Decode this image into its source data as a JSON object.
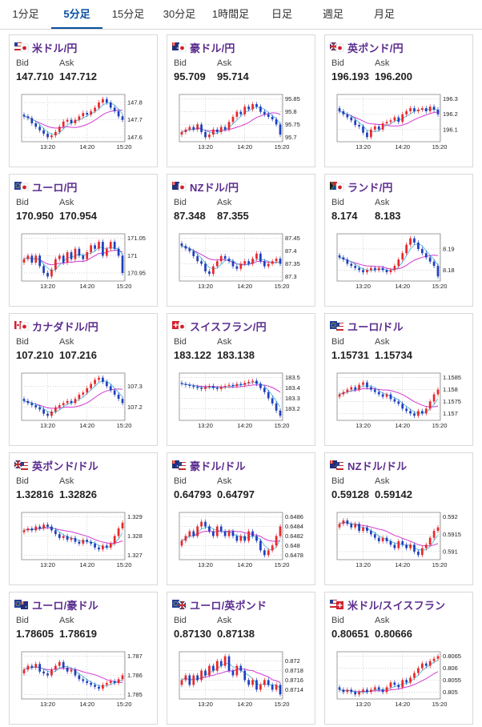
{
  "tabs": [
    "1分足",
    "5分足",
    "15分足",
    "30分足",
    "1時間足",
    "日足",
    "週足",
    "月足"
  ],
  "active_tab": 1,
  "colors": {
    "accent": "#0a50a0",
    "title": "#5b2d8e",
    "up": "#e8282b",
    "down": "#1f3fbd",
    "ma_pink": "#d33ad3",
    "ma_cyan": "#3cb4d8"
  },
  "labels": {
    "bid": "Bid",
    "ask": "Ask"
  },
  "pairs": [
    {
      "name": "米ドル/円",
      "flag": "us-jp-flag-icon",
      "bid": "147.710",
      "ask": "147.712",
      "y_ticks": [
        "147.8",
        "147.7",
        "147.6"
      ],
      "x_ticks": [
        "13:20",
        "14:20",
        "15:20"
      ],
      "closes": [
        147.72,
        147.71,
        147.68,
        147.66,
        147.64,
        147.62,
        147.6,
        147.61,
        147.63,
        147.66,
        147.69,
        147.7,
        147.68,
        147.7,
        147.72,
        147.74,
        147.73,
        147.75,
        147.77,
        147.8,
        147.82,
        147.8,
        147.77,
        147.75,
        147.72,
        147.7
      ]
    },
    {
      "name": "豪ドル/円",
      "flag": "au-jp-flag-icon",
      "bid": "95.709",
      "ask": "95.714",
      "y_ticks": [
        "95.85",
        "95.8",
        "95.75",
        "95.7"
      ],
      "x_ticks": [
        "13:20",
        "14:20",
        "15:20"
      ],
      "closes": [
        95.72,
        95.73,
        95.74,
        95.73,
        95.75,
        95.72,
        95.7,
        95.71,
        95.73,
        95.72,
        95.74,
        95.73,
        95.76,
        95.78,
        95.8,
        95.79,
        95.82,
        95.81,
        95.83,
        95.82,
        95.8,
        95.79,
        95.78,
        95.77,
        95.75,
        95.71
      ]
    },
    {
      "name": "英ポンド/円",
      "flag": "gb-jp-flag-icon",
      "bid": "196.193",
      "ask": "196.200",
      "y_ticks": [
        "196.3",
        "196.2",
        "196.1"
      ],
      "x_ticks": [
        "13:20",
        "14:20",
        "15:20"
      ],
      "closes": [
        196.22,
        196.2,
        196.18,
        196.16,
        196.13,
        196.12,
        196.08,
        196.05,
        196.1,
        196.12,
        196.1,
        196.14,
        196.15,
        196.16,
        196.18,
        196.15,
        196.2,
        196.22,
        196.24,
        196.22,
        196.23,
        196.24,
        196.22,
        196.25,
        196.23,
        196.2
      ]
    },
    {
      "name": "ユーロ/円",
      "flag": "eu-jp-flag-icon",
      "bid": "170.950",
      "ask": "170.954",
      "y_ticks": [
        "171.05",
        "171",
        "170.95"
      ],
      "x_ticks": [
        "13:20",
        "14:20",
        "15:20"
      ],
      "closes": [
        170.99,
        171.0,
        170.98,
        171.0,
        170.97,
        170.95,
        170.94,
        170.96,
        170.99,
        171.0,
        170.98,
        171.01,
        170.99,
        171.02,
        171.0,
        170.99,
        171.01,
        171.03,
        171.02,
        171.04,
        171.0,
        171.02,
        171.04,
        171.02,
        171.0,
        170.95
      ]
    },
    {
      "name": "NZドル/円",
      "flag": "nz-jp-flag-icon",
      "bid": "87.348",
      "ask": "87.355",
      "y_ticks": [
        "87.45",
        "87.4",
        "87.35",
        "87.3"
      ],
      "x_ticks": [
        "13:20",
        "14:20",
        "15:20"
      ],
      "closes": [
        87.42,
        87.41,
        87.4,
        87.38,
        87.36,
        87.35,
        87.32,
        87.31,
        87.34,
        87.36,
        87.38,
        87.37,
        87.36,
        87.34,
        87.33,
        87.35,
        87.36,
        87.35,
        87.37,
        87.39,
        87.36,
        87.34,
        87.35,
        87.36,
        87.37,
        87.35
      ]
    },
    {
      "name": "ランド/円",
      "flag": "za-jp-flag-icon",
      "bid": "8.174",
      "ask": "8.183",
      "y_ticks": [
        "8.19",
        "8.18"
      ],
      "x_ticks": [
        "13:20",
        "14:20",
        "15:20"
      ],
      "closes": [
        8.186,
        8.185,
        8.183,
        8.182,
        8.181,
        8.18,
        8.179,
        8.18,
        8.181,
        8.18,
        8.181,
        8.18,
        8.179,
        8.18,
        8.182,
        8.185,
        8.188,
        8.192,
        8.195,
        8.193,
        8.19,
        8.188,
        8.186,
        8.184,
        8.182,
        8.177
      ]
    },
    {
      "name": "カナダドル/円",
      "flag": "ca-jp-flag-icon",
      "bid": "107.210",
      "ask": "107.216",
      "y_ticks": [
        "107.3",
        "107.2"
      ],
      "x_ticks": [
        "13:20",
        "14:20",
        "15:20"
      ],
      "closes": [
        107.23,
        107.22,
        107.21,
        107.2,
        107.19,
        107.17,
        107.16,
        107.18,
        107.2,
        107.21,
        107.22,
        107.23,
        107.22,
        107.24,
        107.26,
        107.27,
        107.29,
        107.31,
        107.33,
        107.34,
        107.32,
        107.3,
        107.28,
        107.26,
        107.24,
        107.22
      ]
    },
    {
      "name": "スイスフラン/円",
      "flag": "ch-jp-flag-icon",
      "bid": "183.122",
      "ask": "183.138",
      "y_ticks": [
        "183.5",
        "183.4",
        "183.3",
        "183.2"
      ],
      "x_ticks": [
        "13:20",
        "14:20",
        "15:20"
      ],
      "closes": [
        183.44,
        183.43,
        183.42,
        183.41,
        183.4,
        183.39,
        183.41,
        183.42,
        183.4,
        183.39,
        183.41,
        183.42,
        183.43,
        183.42,
        183.44,
        183.43,
        183.45,
        183.46,
        183.47,
        183.44,
        183.4,
        183.36,
        183.3,
        183.25,
        183.18,
        183.13
      ]
    },
    {
      "name": "ユーロ/ドル",
      "flag": "eu-us-flag-icon",
      "bid": "1.15731",
      "ask": "1.15734",
      "y_ticks": [
        "1.1585",
        "1.158",
        "1.1575",
        "1.157"
      ],
      "x_ticks": [
        "13:20",
        "14:20",
        "15:20"
      ],
      "closes": [
        1.1578,
        1.1579,
        1.158,
        1.1581,
        1.158,
        1.1582,
        1.1583,
        1.1581,
        1.158,
        1.1579,
        1.1578,
        1.1577,
        1.1578,
        1.1576,
        1.1575,
        1.1574,
        1.1572,
        1.1571,
        1.157,
        1.1569,
        1.1571,
        1.157,
        1.1572,
        1.1575,
        1.1578,
        1.158
      ]
    },
    {
      "name": "英ポンド/ドル",
      "flag": "gb-us-flag-icon",
      "bid": "1.32816",
      "ask": "1.32826",
      "y_ticks": [
        "1.329",
        "1.328",
        "1.327"
      ],
      "x_ticks": [
        "13:20",
        "14:20",
        "15:20"
      ],
      "closes": [
        1.3283,
        1.3284,
        1.3283,
        1.3285,
        1.3284,
        1.3286,
        1.3285,
        1.3283,
        1.3281,
        1.3279,
        1.328,
        1.3278,
        1.3279,
        1.3277,
        1.3276,
        1.3278,
        1.3277,
        1.3276,
        1.3274,
        1.3273,
        1.3275,
        1.3274,
        1.3276,
        1.328,
        1.3284,
        1.3287
      ]
    },
    {
      "name": "豪ドル/ドル",
      "flag": "au-us-flag-icon",
      "bid": "0.64793",
      "ask": "0.64797",
      "y_ticks": [
        "0.6486",
        "0.6484",
        "0.6482",
        "0.648",
        "0.6478"
      ],
      "x_ticks": [
        "13:20",
        "14:20",
        "15:20"
      ],
      "closes": [
        0.6481,
        0.6482,
        0.6483,
        0.6482,
        0.6484,
        0.6485,
        0.6484,
        0.6483,
        0.6482,
        0.6484,
        0.6483,
        0.6482,
        0.6483,
        0.6482,
        0.6481,
        0.6482,
        0.6481,
        0.6483,
        0.6482,
        0.6481,
        0.6479,
        0.6478,
        0.6479,
        0.648,
        0.6482,
        0.6484
      ]
    },
    {
      "name": "NZドル/ドル",
      "flag": "nz-us-flag-icon",
      "bid": "0.59128",
      "ask": "0.59142",
      "y_ticks": [
        "0.592",
        "0.5915",
        "0.591"
      ],
      "x_ticks": [
        "13:20",
        "14:20",
        "15:20"
      ],
      "closes": [
        0.5918,
        0.5919,
        0.5918,
        0.5917,
        0.5918,
        0.5916,
        0.5917,
        0.5916,
        0.5915,
        0.5914,
        0.5913,
        0.5914,
        0.5913,
        0.5912,
        0.5911,
        0.5913,
        0.5912,
        0.5911,
        0.5912,
        0.591,
        0.5909,
        0.5911,
        0.5912,
        0.5914,
        0.5916,
        0.5917
      ]
    },
    {
      "name": "ユーロ/豪ドル",
      "flag": "eu-au-flag-icon",
      "bid": "1.78605",
      "ask": "1.78619",
      "y_ticks": [
        "1.787",
        "1.786",
        "1.785"
      ],
      "x_ticks": [
        "13:20",
        "14:20",
        "15:20"
      ],
      "closes": [
        1.7863,
        1.7865,
        1.7864,
        1.7866,
        1.7862,
        1.7861,
        1.786,
        1.7863,
        1.7865,
        1.7867,
        1.7864,
        1.7862,
        1.7863,
        1.786,
        1.7858,
        1.7857,
        1.7856,
        1.7855,
        1.7854,
        1.7853,
        1.7855,
        1.7856,
        1.7857,
        1.7856,
        1.7858,
        1.786
      ]
    },
    {
      "name": "ユーロ/英ポンド",
      "flag": "eu-gb-flag-icon",
      "bid": "0.87130",
      "ask": "0.87138",
      "y_ticks": [
        "0.872",
        "0.8718",
        "0.8716",
        "0.8714"
      ],
      "x_ticks": [
        "13:20",
        "14:20",
        "15:20"
      ],
      "closes": [
        0.8716,
        0.8717,
        0.8715,
        0.8717,
        0.8716,
        0.8718,
        0.8717,
        0.8719,
        0.8718,
        0.872,
        0.8719,
        0.8721,
        0.8718,
        0.8717,
        0.8719,
        0.8718,
        0.8716,
        0.8715,
        0.8716,
        0.8714,
        0.8715,
        0.8716,
        0.8715,
        0.8714,
        0.8715,
        0.8713
      ]
    },
    {
      "name": "米ドル/スイスフラン",
      "flag": "us-ch-flag-icon",
      "bid": "0.80651",
      "ask": "0.80666",
      "y_ticks": [
        "0.8065",
        "0.806",
        "0.8055",
        "0.805"
      ],
      "x_ticks": [
        "13:20",
        "14:20",
        "15:20"
      ],
      "closes": [
        0.8051,
        0.805,
        0.8051,
        0.805,
        0.8049,
        0.805,
        0.8051,
        0.805,
        0.8051,
        0.8052,
        0.8051,
        0.805,
        0.8052,
        0.8054,
        0.8053,
        0.8052,
        0.8055,
        0.8054,
        0.8056,
        0.8058,
        0.806,
        0.8062,
        0.8061,
        0.8063,
        0.8064,
        0.8065
      ]
    }
  ]
}
